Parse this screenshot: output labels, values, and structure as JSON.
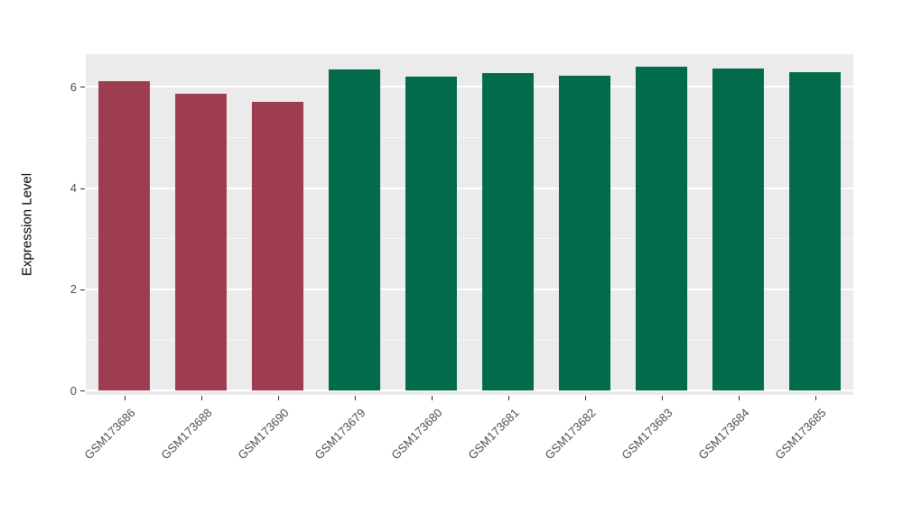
{
  "chart_data": {
    "type": "bar",
    "title": "",
    "xlabel": "",
    "ylabel": "Expression Level",
    "categories": [
      "GSM173686",
      "GSM173688",
      "GSM173690",
      "GSM173679",
      "GSM173680",
      "GSM173681",
      "GSM173682",
      "GSM173683",
      "GSM173684",
      "GSM173685"
    ],
    "values": [
      6.12,
      5.87,
      5.7,
      6.35,
      6.2,
      6.28,
      6.22,
      6.4,
      6.36,
      6.3
    ],
    "bar_colors": [
      "#9e3d50",
      "#9e3d50",
      "#9e3d50",
      "#026b4c",
      "#026b4c",
      "#026b4c",
      "#026b4c",
      "#026b4c",
      "#026b4c",
      "#026b4c"
    ],
    "group_colors": {
      "group1": "#9e3d50",
      "group2": "#026b4c"
    },
    "ylim": [
      0,
      6.65
    ],
    "yticks": [
      0,
      2,
      4,
      6
    ],
    "minor_yticks": [
      1,
      3,
      5
    ],
    "grid": "on",
    "legend": "none",
    "panel_bg": "#EBEBEB",
    "grid_color": "#FFFFFF",
    "axis_text_color": "#4D4D4D"
  }
}
